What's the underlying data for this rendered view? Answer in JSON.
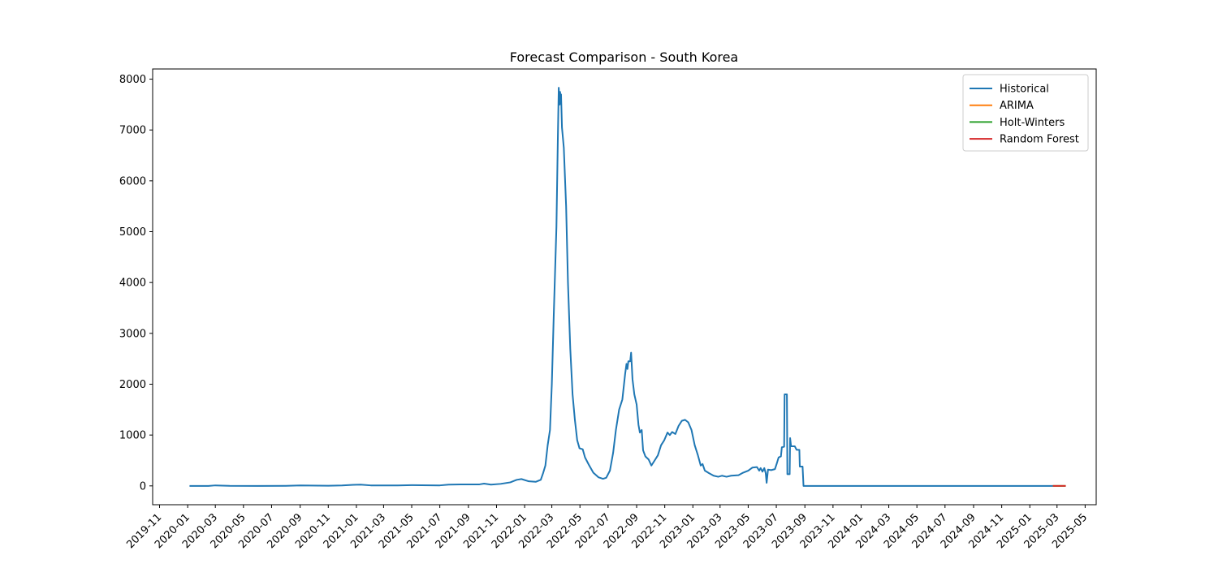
{
  "chart_data": {
    "type": "line",
    "title": "Forecast Comparison - South Korea",
    "xlabel": "",
    "ylabel": "",
    "xlim": [
      "2019-10-17",
      "2025-05-25"
    ],
    "ylim": [
      -370,
      8200
    ],
    "grid": false,
    "legend_position": "top-right",
    "y_ticks": [
      0,
      1000,
      2000,
      3000,
      4000,
      5000,
      6000,
      7000,
      8000
    ],
    "x_ticks": [
      "2019-11",
      "2020-01",
      "2020-03",
      "2020-05",
      "2020-07",
      "2020-09",
      "2020-11",
      "2021-01",
      "2021-03",
      "2021-05",
      "2021-07",
      "2021-09",
      "2021-11",
      "2022-01",
      "2022-03",
      "2022-05",
      "2022-07",
      "2022-09",
      "2022-11",
      "2023-01",
      "2023-03",
      "2023-05",
      "2023-07",
      "2023-09",
      "2023-11",
      "2024-01",
      "2024-03",
      "2024-05",
      "2024-07",
      "2024-09",
      "2024-11",
      "2025-01",
      "2025-03",
      "2025-05"
    ],
    "series": [
      {
        "name": "Historical",
        "color": "#1f77b4",
        "points": [
          [
            "2020-01-05",
            0
          ],
          [
            "2020-02-15",
            0
          ],
          [
            "2020-03-01",
            10
          ],
          [
            "2020-04-01",
            2
          ],
          [
            "2020-06-01",
            0
          ],
          [
            "2020-08-01",
            2
          ],
          [
            "2020-09-01",
            8
          ],
          [
            "2020-11-01",
            3
          ],
          [
            "2020-12-01",
            8
          ],
          [
            "2020-12-25",
            22
          ],
          [
            "2021-01-10",
            25
          ],
          [
            "2021-02-01",
            10
          ],
          [
            "2021-04-01",
            10
          ],
          [
            "2021-05-01",
            15
          ],
          [
            "2021-07-01",
            10
          ],
          [
            "2021-07-20",
            25
          ],
          [
            "2021-08-15",
            28
          ],
          [
            "2021-09-25",
            30
          ],
          [
            "2021-10-05",
            45
          ],
          [
            "2021-10-20",
            25
          ],
          [
            "2021-11-10",
            40
          ],
          [
            "2021-12-01",
            70
          ],
          [
            "2021-12-15",
            120
          ],
          [
            "2021-12-25",
            135
          ],
          [
            "2022-01-10",
            90
          ],
          [
            "2022-01-25",
            80
          ],
          [
            "2022-02-05",
            120
          ],
          [
            "2022-02-10",
            250
          ],
          [
            "2022-02-15",
            400
          ],
          [
            "2022-02-20",
            800
          ],
          [
            "2022-02-25",
            1100
          ],
          [
            "2022-03-01",
            2000
          ],
          [
            "2022-03-05",
            3300
          ],
          [
            "2022-03-08",
            4200
          ],
          [
            "2022-03-11",
            5100
          ],
          [
            "2022-03-14",
            6800
          ],
          [
            "2022-03-16",
            7830
          ],
          [
            "2022-03-18",
            7500
          ],
          [
            "2022-03-19",
            7750
          ],
          [
            "2022-03-20",
            7550
          ],
          [
            "2022-03-21",
            7700
          ],
          [
            "2022-03-23",
            7050
          ],
          [
            "2022-03-27",
            6650
          ],
          [
            "2022-04-01",
            5500
          ],
          [
            "2022-04-05",
            4000
          ],
          [
            "2022-04-10",
            2700
          ],
          [
            "2022-04-15",
            1800
          ],
          [
            "2022-04-20",
            1300
          ],
          [
            "2022-04-25",
            900
          ],
          [
            "2022-04-30",
            740
          ],
          [
            "2022-05-07",
            720
          ],
          [
            "2022-05-12",
            560
          ],
          [
            "2022-05-20",
            420
          ],
          [
            "2022-05-30",
            260
          ],
          [
            "2022-06-10",
            170
          ],
          [
            "2022-06-20",
            140
          ],
          [
            "2022-06-27",
            160
          ],
          [
            "2022-07-05",
            300
          ],
          [
            "2022-07-12",
            650
          ],
          [
            "2022-07-18",
            1100
          ],
          [
            "2022-07-25",
            1500
          ],
          [
            "2022-08-01",
            1700
          ],
          [
            "2022-08-07",
            2200
          ],
          [
            "2022-08-10",
            2400
          ],
          [
            "2022-08-12",
            2300
          ],
          [
            "2022-08-14",
            2450
          ],
          [
            "2022-08-18",
            2450
          ],
          [
            "2022-08-20",
            2620
          ],
          [
            "2022-08-23",
            2100
          ],
          [
            "2022-08-27",
            1800
          ],
          [
            "2022-09-01",
            1600
          ],
          [
            "2022-09-05",
            1200
          ],
          [
            "2022-09-08",
            1050
          ],
          [
            "2022-09-12",
            1100
          ],
          [
            "2022-09-15",
            700
          ],
          [
            "2022-09-20",
            580
          ],
          [
            "2022-09-27",
            520
          ],
          [
            "2022-10-03",
            400
          ],
          [
            "2022-10-10",
            500
          ],
          [
            "2022-10-17",
            600
          ],
          [
            "2022-10-24",
            800
          ],
          [
            "2022-10-31",
            900
          ],
          [
            "2022-11-07",
            1050
          ],
          [
            "2022-11-12",
            1000
          ],
          [
            "2022-11-17",
            1060
          ],
          [
            "2022-11-24",
            1020
          ],
          [
            "2022-12-01",
            1180
          ],
          [
            "2022-12-08",
            1280
          ],
          [
            "2022-12-15",
            1300
          ],
          [
            "2022-12-22",
            1250
          ],
          [
            "2022-12-29",
            1100
          ],
          [
            "2023-01-05",
            800
          ],
          [
            "2023-01-12",
            600
          ],
          [
            "2023-01-18",
            400
          ],
          [
            "2023-01-22",
            430
          ],
          [
            "2023-01-27",
            300
          ],
          [
            "2023-02-05",
            250
          ],
          [
            "2023-02-15",
            200
          ],
          [
            "2023-02-25",
            180
          ],
          [
            "2023-03-05",
            200
          ],
          [
            "2023-03-15",
            180
          ],
          [
            "2023-03-25",
            200
          ],
          [
            "2023-04-10",
            210
          ],
          [
            "2023-04-20",
            260
          ],
          [
            "2023-05-01",
            300
          ],
          [
            "2023-05-10",
            360
          ],
          [
            "2023-05-20",
            370
          ],
          [
            "2023-05-25",
            300
          ],
          [
            "2023-05-28",
            350
          ],
          [
            "2023-06-01",
            280
          ],
          [
            "2023-06-05",
            350
          ],
          [
            "2023-06-08",
            250
          ],
          [
            "2023-06-10",
            60
          ],
          [
            "2023-06-13",
            320
          ],
          [
            "2023-06-20",
            310
          ],
          [
            "2023-06-28",
            330
          ],
          [
            "2023-07-02",
            440
          ],
          [
            "2023-07-06",
            560
          ],
          [
            "2023-07-11",
            580
          ],
          [
            "2023-07-13",
            760
          ],
          [
            "2023-07-18",
            770
          ],
          [
            "2023-07-19",
            1800
          ],
          [
            "2023-07-24",
            1800
          ],
          [
            "2023-07-25",
            230
          ],
          [
            "2023-07-30",
            230
          ],
          [
            "2023-07-31",
            940
          ],
          [
            "2023-08-02",
            780
          ],
          [
            "2023-08-10",
            780
          ],
          [
            "2023-08-14",
            710
          ],
          [
            "2023-08-20",
            710
          ],
          [
            "2023-08-21",
            380
          ],
          [
            "2023-08-27",
            380
          ],
          [
            "2023-08-29",
            0
          ],
          [
            "2024-01-01",
            0
          ],
          [
            "2024-06-01",
            0
          ],
          [
            "2025-02-20",
            0
          ]
        ]
      },
      {
        "name": "ARIMA",
        "color": "#ff7f0e",
        "points": [
          [
            "2025-02-20",
            0
          ],
          [
            "2025-03-20",
            0
          ]
        ]
      },
      {
        "name": "Holt-Winters",
        "color": "#2ca02c",
        "points": [
          [
            "2025-02-20",
            0
          ],
          [
            "2025-03-20",
            0
          ]
        ]
      },
      {
        "name": "Random Forest",
        "color": "#d62728",
        "points": [
          [
            "2025-02-20",
            0
          ],
          [
            "2025-03-20",
            0
          ]
        ]
      }
    ]
  }
}
